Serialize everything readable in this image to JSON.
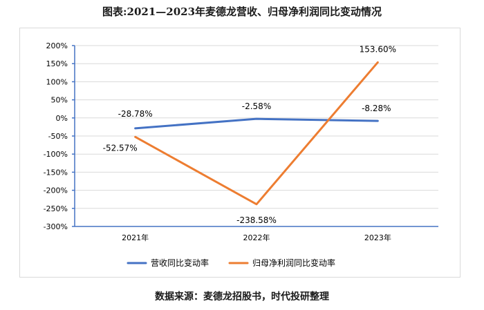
{
  "title": "图表:2021—2023年麦德龙营收、归母净利润同比变动情况",
  "source": "数据来源：麦德龙招股书，时代投研整理",
  "colors": {
    "series1": "#4472c4",
    "series2": "#ed7d31",
    "axis": "#4472c4",
    "grid": "#d9d9d9",
    "text": "#000000"
  },
  "chart_data": {
    "type": "line",
    "categories": [
      "2021年",
      "2022年",
      "2023年"
    ],
    "ylim": [
      -300,
      200
    ],
    "yticks": [
      "200%",
      "150%",
      "100%",
      "50%",
      "0%",
      "-50%",
      "-100%",
      "-150%",
      "-200%",
      "-250%",
      "-300%"
    ],
    "ytick_values": [
      200,
      150,
      100,
      50,
      0,
      -50,
      -100,
      -150,
      -200,
      -250,
      -300
    ],
    "grid": true,
    "legend_position": "bottom",
    "series": [
      {
        "name": "营收同比变动率",
        "values": [
          -28.78,
          -2.58,
          -8.28
        ],
        "labels": [
          "-28.78%",
          "-2.58%",
          "-8.28%"
        ]
      },
      {
        "name": "归母净利润同比变动率",
        "values": [
          -52.57,
          -238.58,
          153.6
        ],
        "labels": [
          "-52.57%",
          "-238.58%",
          "153.60%"
        ]
      }
    ]
  }
}
